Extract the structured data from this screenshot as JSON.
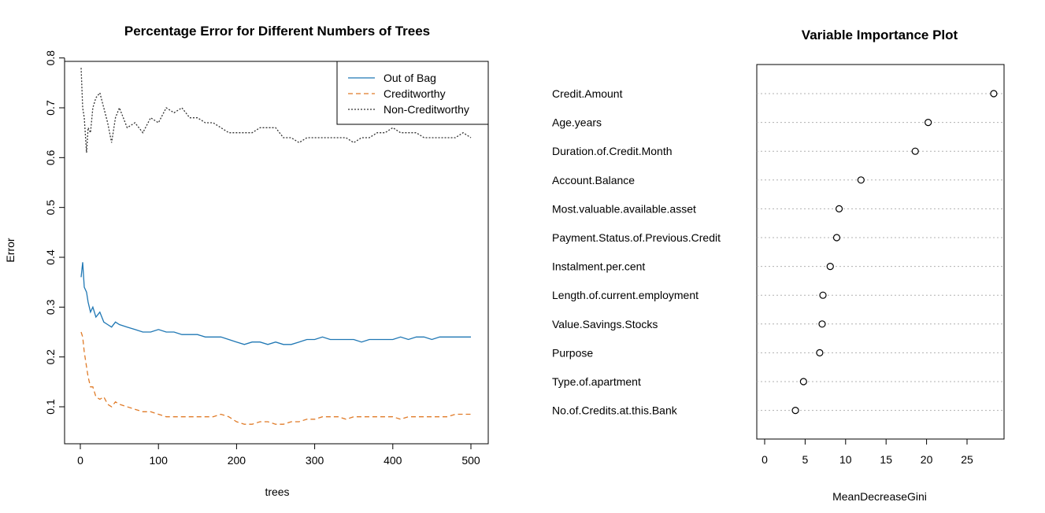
{
  "chart_data": [
    {
      "type": "line",
      "title": "Percentage Error for Different Numbers of Trees",
      "xlabel": "trees",
      "ylabel": "Error",
      "xlim": [
        0,
        500
      ],
      "ylim": [
        0.05,
        0.8
      ],
      "x_ticks": [
        "0",
        "100",
        "200",
        "300",
        "400",
        "500"
      ],
      "y_ticks": [
        "0.1",
        "0.2",
        "0.3",
        "0.4",
        "0.5",
        "0.6",
        "0.7",
        "0.8"
      ],
      "legend_position": "top-right",
      "series": [
        {
          "name": "Out of Bag",
          "style": "solid",
          "color": "#1f77b4",
          "x": [
            1,
            3,
            5,
            8,
            10,
            13,
            16,
            20,
            25,
            30,
            35,
            40,
            45,
            50,
            60,
            70,
            80,
            90,
            100,
            110,
            120,
            130,
            140,
            150,
            160,
            170,
            180,
            190,
            200,
            210,
            220,
            230,
            240,
            250,
            260,
            270,
            280,
            290,
            300,
            310,
            320,
            330,
            340,
            350,
            360,
            370,
            380,
            390,
            400,
            410,
            420,
            430,
            440,
            450,
            460,
            470,
            480,
            490,
            500
          ],
          "values": [
            0.36,
            0.39,
            0.34,
            0.33,
            0.31,
            0.29,
            0.3,
            0.28,
            0.29,
            0.27,
            0.265,
            0.26,
            0.27,
            0.265,
            0.26,
            0.255,
            0.25,
            0.25,
            0.255,
            0.25,
            0.25,
            0.245,
            0.245,
            0.245,
            0.24,
            0.24,
            0.24,
            0.235,
            0.23,
            0.225,
            0.23,
            0.23,
            0.225,
            0.23,
            0.225,
            0.225,
            0.23,
            0.235,
            0.235,
            0.24,
            0.235,
            0.235,
            0.235,
            0.235,
            0.23,
            0.235,
            0.235,
            0.235,
            0.235,
            0.24,
            0.235,
            0.24,
            0.24,
            0.235,
            0.24,
            0.24,
            0.24,
            0.24,
            0.24
          ]
        },
        {
          "name": "Creditworthy",
          "style": "dashed",
          "color": "#e07b28",
          "x": [
            1,
            3,
            5,
            8,
            10,
            13,
            16,
            20,
            25,
            30,
            35,
            40,
            45,
            50,
            60,
            70,
            80,
            90,
            100,
            110,
            120,
            130,
            140,
            150,
            160,
            170,
            180,
            190,
            200,
            210,
            220,
            230,
            240,
            250,
            260,
            270,
            280,
            290,
            300,
            310,
            320,
            330,
            340,
            350,
            360,
            370,
            380,
            390,
            400,
            410,
            420,
            430,
            440,
            450,
            460,
            470,
            480,
            490,
            500
          ],
          "values": [
            0.25,
            0.24,
            0.21,
            0.18,
            0.16,
            0.14,
            0.14,
            0.12,
            0.115,
            0.12,
            0.105,
            0.1,
            0.11,
            0.105,
            0.1,
            0.095,
            0.09,
            0.09,
            0.085,
            0.08,
            0.08,
            0.08,
            0.08,
            0.08,
            0.08,
            0.08,
            0.085,
            0.08,
            0.07,
            0.065,
            0.065,
            0.07,
            0.07,
            0.065,
            0.065,
            0.07,
            0.07,
            0.075,
            0.075,
            0.08,
            0.08,
            0.08,
            0.075,
            0.08,
            0.08,
            0.08,
            0.08,
            0.08,
            0.08,
            0.075,
            0.08,
            0.08,
            0.08,
            0.08,
            0.08,
            0.08,
            0.085,
            0.085,
            0.085
          ]
        },
        {
          "name": "Non-Creditworthy",
          "style": "dotted",
          "color": "#333333",
          "x": [
            1,
            3,
            5,
            8,
            10,
            13,
            16,
            20,
            25,
            30,
            35,
            40,
            45,
            50,
            60,
            70,
            80,
            90,
            100,
            110,
            120,
            130,
            140,
            150,
            160,
            170,
            180,
            190,
            200,
            210,
            220,
            230,
            240,
            250,
            260,
            270,
            280,
            290,
            300,
            310,
            320,
            330,
            340,
            350,
            360,
            370,
            380,
            390,
            400,
            410,
            420,
            430,
            440,
            450,
            460,
            470,
            480,
            490,
            500
          ],
          "values": [
            0.78,
            0.7,
            0.68,
            0.61,
            0.66,
            0.65,
            0.7,
            0.72,
            0.73,
            0.7,
            0.67,
            0.63,
            0.68,
            0.7,
            0.66,
            0.67,
            0.65,
            0.68,
            0.67,
            0.7,
            0.69,
            0.7,
            0.68,
            0.68,
            0.67,
            0.67,
            0.66,
            0.65,
            0.65,
            0.65,
            0.65,
            0.66,
            0.66,
            0.66,
            0.64,
            0.64,
            0.63,
            0.64,
            0.64,
            0.64,
            0.64,
            0.64,
            0.64,
            0.63,
            0.64,
            0.64,
            0.65,
            0.65,
            0.66,
            0.65,
            0.65,
            0.65,
            0.64,
            0.64,
            0.64,
            0.64,
            0.64,
            0.65,
            0.64
          ]
        }
      ]
    },
    {
      "type": "scatter",
      "title": "Variable Importance Plot",
      "xlabel": "MeanDecreaseGini",
      "ylabel": "",
      "xlim": [
        -1,
        29
      ],
      "x_ticks": [
        "0",
        "5",
        "10",
        "15",
        "20",
        "25"
      ],
      "categories": [
        "Credit.Amount",
        "Age.years",
        "Duration.of.Credit.Month",
        "Account.Balance",
        "Most.valuable.available.asset",
        "Payment.Status.of.Previous.Credit",
        "Instalment.per.cent",
        "Length.of.current.employment",
        "Value.Savings.Stocks",
        "Purpose",
        "Type.of.apartment",
        "No.of.Credits.at.this.Bank"
      ],
      "values": [
        28.3,
        20.2,
        18.6,
        11.9,
        9.2,
        8.9,
        8.1,
        7.2,
        7.1,
        6.8,
        4.8,
        3.8
      ]
    }
  ]
}
